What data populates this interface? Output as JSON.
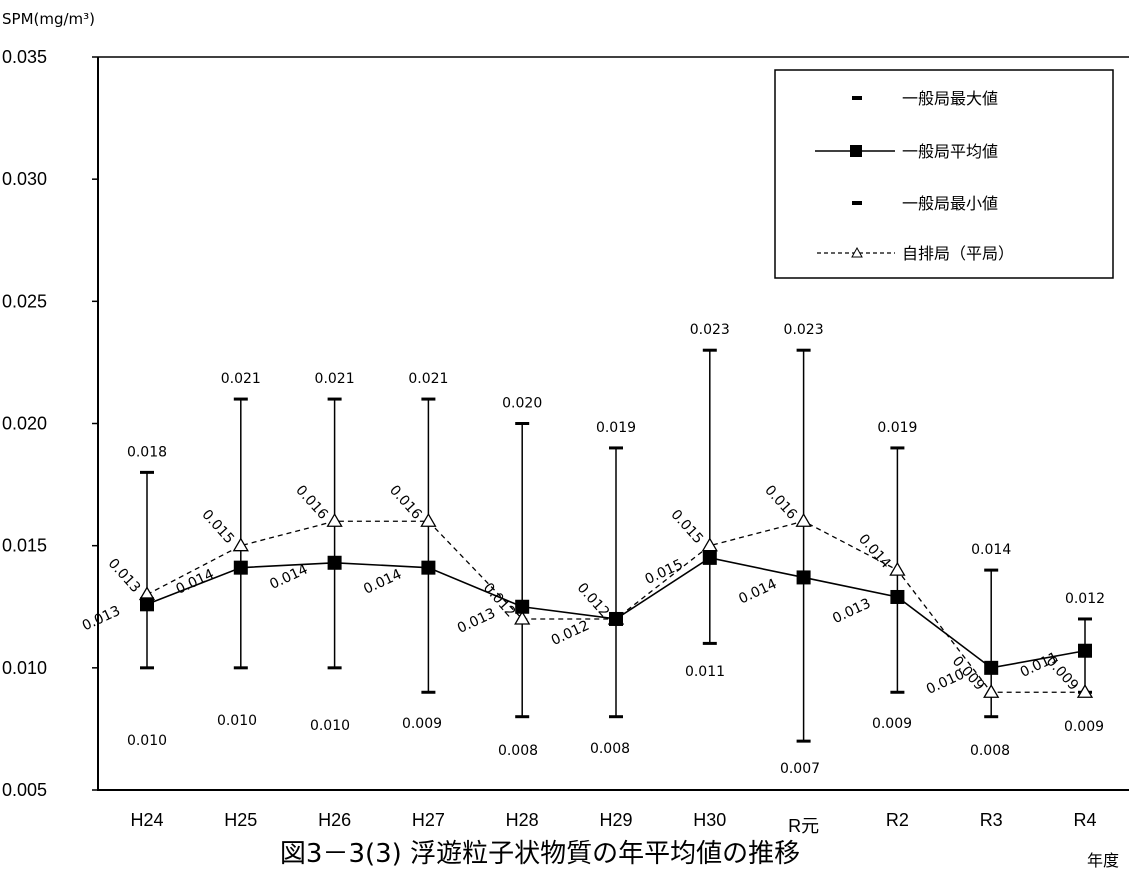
{
  "chart_data": {
    "type": "line",
    "title": "図3－3(3) 浮遊粒子状物質の年平均値の推移",
    "ylabel": "SPM(mg/m³)",
    "xlabel": "年度",
    "ylim": [
      0.005,
      0.035
    ],
    "yticks": [
      "0.005",
      "0.010",
      "0.015",
      "0.020",
      "0.025",
      "0.030",
      "0.035"
    ],
    "grid": false,
    "legend_position": "top-right",
    "categories": [
      "H24",
      "H25",
      "H26",
      "H27",
      "H28",
      "H29",
      "H30",
      "R元",
      "R2",
      "R3",
      "R4"
    ],
    "series": [
      {
        "name": "一般局最大値",
        "values": [
          0.018,
          0.021,
          0.021,
          0.021,
          0.02,
          0.019,
          0.023,
          0.023,
          0.019,
          0.014,
          0.012
        ],
        "labels": [
          "0.018",
          "0.021",
          "0.021",
          "0.021",
          "0.020",
          "0.019",
          "0.023",
          "0.023",
          "0.019",
          "0.014",
          "0.012"
        ]
      },
      {
        "name": "一般局平均値",
        "values": [
          0.0126,
          0.0141,
          0.0143,
          0.0141,
          0.0125,
          0.012,
          0.0145,
          0.0137,
          0.0129,
          0.01,
          0.0107
        ],
        "labels": [
          "0.013",
          "0.014",
          "0.014",
          "0.014",
          "0.013",
          "0.012",
          "0.015",
          "0.014",
          "0.013",
          "0.010",
          "0.011"
        ]
      },
      {
        "name": "一般局最小値",
        "values": [
          0.01,
          0.01,
          0.01,
          0.009,
          0.008,
          0.008,
          0.011,
          0.007,
          0.009,
          0.008,
          0.009
        ],
        "labels": [
          "0.010",
          "0.010",
          "0.010",
          "0.009",
          "0.008",
          "0.008",
          "0.011",
          "0.007",
          "0.009",
          "0.008",
          "0.009"
        ]
      },
      {
        "name": "自排局（平局）",
        "values": [
          0.013,
          0.015,
          0.016,
          0.016,
          0.012,
          0.012,
          0.015,
          0.016,
          0.014,
          0.009,
          0.009
        ],
        "labels": [
          "0.013",
          "0.015",
          "0.016",
          "0.016",
          "0.012",
          "0.012",
          "0.015",
          "0.016",
          "0.014",
          "0.009",
          "0.009"
        ]
      }
    ]
  }
}
